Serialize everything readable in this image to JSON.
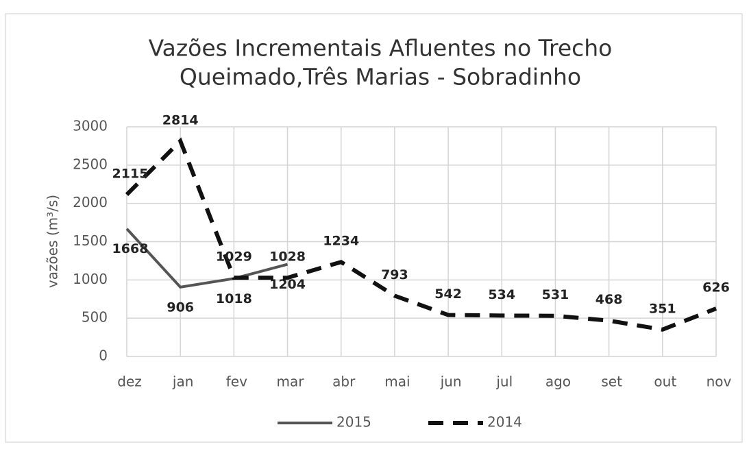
{
  "chart_data": {
    "type": "line",
    "title": [
      "Vazões Incrementais Afluentes no Trecho",
      "Queimado,Três Marias - Sobradinho"
    ],
    "y_label": "vazões (m³/s)",
    "categories": [
      "dez",
      "jan",
      "fev",
      "mar",
      "abr",
      "mai",
      "jun",
      "jul",
      "ago",
      "set",
      "out",
      "nov"
    ],
    "series": [
      {
        "name": "2015",
        "color": "#555555",
        "dashed": false,
        "values": [
          1668,
          906,
          1018,
          1204,
          null,
          null,
          null,
          null,
          null,
          null,
          null,
          null
        ]
      },
      {
        "name": "2014",
        "color": "#111111",
        "dashed": true,
        "values": [
          2115,
          2814,
          1029,
          1028,
          1234,
          793,
          542,
          534,
          531,
          468,
          351,
          626
        ]
      }
    ],
    "ylim": [
      0,
      3000
    ],
    "yticks": [
      0,
      500,
      1000,
      1500,
      2000,
      2500,
      3000
    ],
    "grid": true,
    "legend": "bottom"
  }
}
